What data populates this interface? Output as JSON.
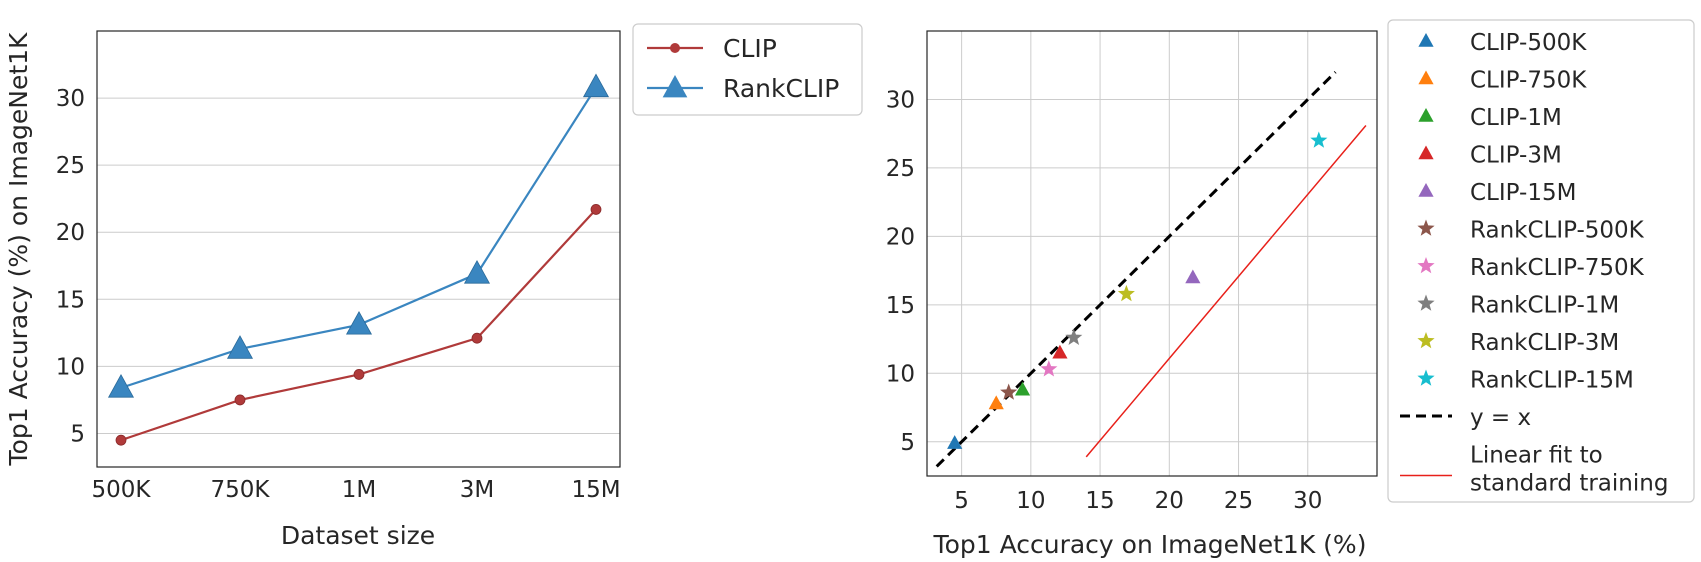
{
  "chart_data": [
    {
      "type": "line",
      "xlabel": "Dataset size",
      "ylabel": "Top1 Accuracy (%) on ImageNet1K",
      "categories": [
        "500K",
        "750K",
        "1M",
        "3M",
        "15M"
      ],
      "yticks": [
        5,
        10,
        15,
        20,
        25,
        30
      ],
      "ylim": [
        2.5,
        35
      ],
      "grid": "horizontal",
      "legend_position": "outside-right",
      "series": [
        {
          "name": "CLIP",
          "color": "#b03a3a",
          "marker": "circle",
          "values": [
            4.5,
            7.5,
            9.4,
            12.1,
            21.7
          ]
        },
        {
          "name": "RankCLIP",
          "color": "#3a86c0",
          "marker": "triangle",
          "values": [
            8.4,
            11.3,
            13.1,
            16.9,
            30.8
          ]
        }
      ]
    },
    {
      "type": "scatter",
      "xlabel": "Top1 Accuracy on ImageNet1K (%)",
      "ylabel": "",
      "xticks": [
        5,
        10,
        15,
        20,
        25,
        30
      ],
      "yticks": [
        5,
        10,
        15,
        20,
        25,
        30
      ],
      "xlim": [
        2.5,
        35
      ],
      "ylim": [
        2.5,
        35
      ],
      "grid": "both",
      "legend_position": "outside-right",
      "points": [
        {
          "name": "CLIP-500K",
          "marker": "triangle",
          "color": "#1f77b4",
          "x": 4.5,
          "y": 4.9
        },
        {
          "name": "CLIP-750K",
          "marker": "triangle",
          "color": "#ff7f0e",
          "x": 7.5,
          "y": 7.8
        },
        {
          "name": "CLIP-1M",
          "marker": "triangle",
          "color": "#2ca02c",
          "x": 9.4,
          "y": 8.8
        },
        {
          "name": "CLIP-3M",
          "marker": "triangle",
          "color": "#d62728",
          "x": 12.1,
          "y": 11.5
        },
        {
          "name": "CLIP-15M",
          "marker": "triangle",
          "color": "#9467bd",
          "x": 21.7,
          "y": 17.0
        },
        {
          "name": "RankCLIP-500K",
          "marker": "star",
          "color": "#8c564b",
          "x": 8.4,
          "y": 8.6
        },
        {
          "name": "RankCLIP-750K",
          "marker": "star",
          "color": "#e377c2",
          "x": 11.3,
          "y": 10.3
        },
        {
          "name": "RankCLIP-1M",
          "marker": "star",
          "color": "#7f7f7f",
          "x": 13.1,
          "y": 12.6
        },
        {
          "name": "RankCLIP-3M",
          "marker": "star",
          "color": "#bcbd22",
          "x": 16.9,
          "y": 15.8
        },
        {
          "name": "RankCLIP-15M",
          "marker": "star",
          "color": "#17becf",
          "x": 30.8,
          "y": 27.0
        }
      ],
      "lines": [
        {
          "name": "y = x",
          "color": "#000000",
          "style": "dashed",
          "x": [
            3.2,
            32.0
          ],
          "y": [
            3.2,
            32.0
          ]
        },
        {
          "name": "Linear fit to standard training",
          "color": "#e8201a",
          "style": "solid",
          "x": [
            14.0,
            34.2
          ],
          "y": [
            3.9,
            28.1
          ]
        }
      ],
      "legend_order": [
        "CLIP-500K",
        "CLIP-750K",
        "CLIP-1M",
        "CLIP-3M",
        "CLIP-15M",
        "RankCLIP-500K",
        "RankCLIP-750K",
        "RankCLIP-1M",
        "RankCLIP-3M",
        "RankCLIP-15M",
        "y = x",
        "Linear fit to standard training"
      ]
    }
  ]
}
